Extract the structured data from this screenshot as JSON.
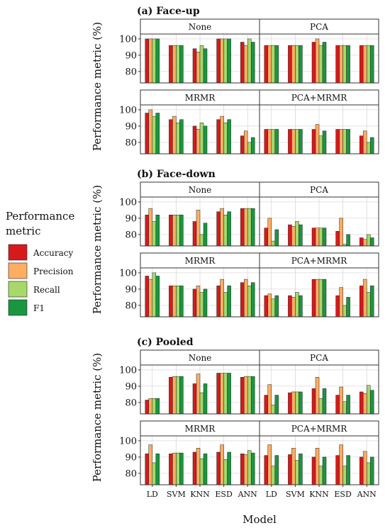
{
  "chart_data": {
    "type": "bar",
    "xlabel": "Model",
    "ylabel": "Performance metric (%)",
    "legend": {
      "title_lines": [
        "Performance",
        "metric"
      ],
      "placement": "left",
      "entries": [
        "Accuracy",
        "Precision",
        "Recall",
        "F1"
      ]
    },
    "colors": {
      "Accuracy": "#d7191c",
      "Precision": "#fdae61",
      "Recall": "#a6d96a",
      "F1": "#1a9641",
      "strip": "#ffffff",
      "panel_border": "#333333",
      "grid": "#d9d9d9"
    },
    "grid": true,
    "ylim": [
      73,
      103
    ],
    "yticks": [
      80,
      90,
      100
    ],
    "models": [
      "LD",
      "SVM",
      "KNN",
      "ESD",
      "ANN"
    ],
    "metrics": [
      "Accuracy",
      "Precision",
      "Recall",
      "F1"
    ],
    "groups": [
      {
        "title": "(a) Face-up",
        "panels": [
          {
            "name": "None",
            "values": [
              [
                100,
                100,
                100,
                100
              ],
              [
                96,
                96,
                96,
                96
              ],
              [
                94,
                92,
                96,
                94
              ],
              [
                100,
                100,
                100,
                100
              ],
              [
                98,
                96,
                100,
                98
              ]
            ]
          },
          {
            "name": "PCA",
            "values": [
              [
                96,
                96,
                96,
                96
              ],
              [
                96,
                96,
                96,
                96
              ],
              [
                98,
                100,
                96,
                98
              ],
              [
                96,
                96,
                96,
                96
              ],
              [
                96,
                96,
                96,
                96
              ]
            ]
          },
          {
            "name": "MRMR",
            "values": [
              [
                98,
                100,
                96,
                98
              ],
              [
                94,
                96,
                92,
                94
              ],
              [
                90,
                88,
                92,
                90
              ],
              [
                94,
                96,
                92,
                94
              ],
              [
                84,
                87,
                80,
                83
              ]
            ]
          },
          {
            "name": "PCA+MRMR",
            "values": [
              [
                88,
                88,
                88,
                88
              ],
              [
                88,
                88,
                88,
                88
              ],
              [
                88,
                91,
                84,
                87
              ],
              [
                88,
                88,
                88,
                88
              ],
              [
                84,
                87,
                80,
                83
              ]
            ]
          }
        ]
      },
      {
        "title": "(b) Face-down",
        "panels": [
          {
            "name": "None",
            "values": [
              [
                92,
                96,
                88,
                92
              ],
              [
                92,
                92,
                92,
                92
              ],
              [
                88,
                95,
                80,
                87
              ],
              [
                94,
                96,
                92,
                94
              ],
              [
                96,
                96,
                96,
                96
              ]
            ]
          },
          {
            "name": "PCA",
            "values": [
              [
                84,
                90,
                76,
                83
              ],
              [
                86,
                85,
                88,
                86
              ],
              [
                84,
                84,
                84,
                84
              ],
              [
                82,
                90,
                74,
                80
              ],
              [
                78,
                77,
                80,
                78
              ]
            ]
          },
          {
            "name": "MRMR",
            "values": [
              [
                98,
                96,
                100,
                98
              ],
              [
                92,
                92,
                92,
                92
              ],
              [
                90,
                92,
                88,
                90
              ],
              [
                92,
                96,
                88,
                92
              ],
              [
                94,
                96,
                92,
                94
              ]
            ]
          },
          {
            "name": "PCA+MRMR",
            "values": [
              [
                86,
                87,
                84,
                86
              ],
              [
                86,
                85,
                88,
                86
              ],
              [
                96,
                96,
                96,
                96
              ],
              [
                86,
                91,
                80,
                85
              ],
              [
                92,
                96,
                88,
                92
              ]
            ]
          }
        ]
      },
      {
        "title": "(c) Pooled",
        "panels": [
          {
            "name": "None",
            "values": [
              [
                81.5,
                82.5,
                82.5,
                82.5
              ],
              [
                95.5,
                96,
                96,
                96
              ],
              [
                91.5,
                97.5,
                86,
                91.5
              ],
              [
                98,
                98,
                98,
                98
              ],
              [
                95.5,
                96,
                96,
                96
              ]
            ]
          },
          {
            "name": "PCA",
            "values": [
              [
                84.5,
                91,
                78.5,
                84.5
              ],
              [
                86,
                86.5,
                86.5,
                86.5
              ],
              [
                88.5,
                95.5,
                82.5,
                88.5
              ],
              [
                84.5,
                89.5,
                80.5,
                84.5
              ],
              [
                86.5,
                85.5,
                90.5,
                87.5
              ]
            ]
          },
          {
            "name": "MRMR",
            "values": [
              [
                92,
                97.5,
                86.5,
                92
              ],
              [
                92,
                92.5,
                92.5,
                92.5
              ],
              [
                93,
                95.5,
                89,
                92
              ],
              [
                93,
                97.5,
                88.5,
                93
              ],
              [
                92,
                91.5,
                94,
                92.5
              ]
            ]
          },
          {
            "name": "PCA+MRMR",
            "values": [
              [
                91,
                97.5,
                84.5,
                91
              ],
              [
                91.5,
                95.5,
                88,
                92
              ],
              [
                90,
                95.5,
                84.5,
                90
              ],
              [
                91,
                97.5,
                84.5,
                91
              ],
              [
                90,
                93.5,
                86.5,
                90
              ]
            ]
          }
        ]
      }
    ]
  }
}
